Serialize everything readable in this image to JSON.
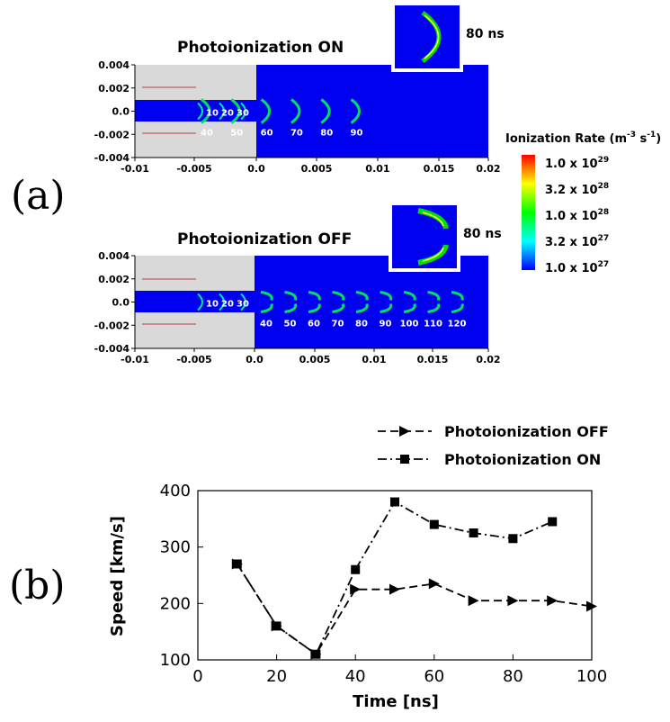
{
  "panel_a": {
    "label": "(a)",
    "sims": [
      {
        "title": "Photoionization ON",
        "inset_label": "80 ns",
        "yticks": [
          "0.004",
          "0.002",
          "0.0",
          "-0.002",
          "-0.004"
        ],
        "xticks": [
          "-0.01",
          "-0.005",
          "0.0",
          "0.005",
          "0.01",
          "0.015",
          "0.02"
        ],
        "time_labels_top": [
          "10",
          "20",
          "30"
        ],
        "time_labels_bottom": [
          "40",
          "50",
          "60",
          "70",
          "80",
          "90"
        ]
      },
      {
        "title": "Photoionization OFF",
        "inset_label": "80 ns",
        "yticks": [
          "0.004",
          "0.002",
          "0.0",
          "-0.002",
          "-0.004"
        ],
        "xticks": [
          "-0.01",
          "-0.005",
          "0.0",
          "0.005",
          "0.01",
          "0.015",
          "0.02"
        ],
        "time_labels_top": [
          "10",
          "20",
          "30"
        ],
        "time_labels_bottom": [
          "40",
          "50",
          "60",
          "70",
          "80",
          "90",
          "100",
          "110",
          "120"
        ]
      }
    ],
    "colorbar": {
      "title": "Ionization Rate (m",
      "title_sup1": "-3",
      "title_mid": " s",
      "title_sup2": "-1",
      "title_end": ")",
      "ticks": [
        {
          "mant": "1.0 x 10",
          "exp": "29"
        },
        {
          "mant": "3.2 x 10",
          "exp": "28"
        },
        {
          "mant": "1.0 x 10",
          "exp": "28"
        },
        {
          "mant": "3.2 x 10",
          "exp": "27"
        },
        {
          "mant": "1.0 x 10",
          "exp": "27"
        }
      ],
      "colors": [
        "#ff0000",
        "#ffff00",
        "#00ff00",
        "#00ffff",
        "#0000ff"
      ]
    }
  },
  "panel_b": {
    "label": "(b)"
  },
  "chart_data": {
    "type": "line",
    "xlabel": "Time [ns]",
    "ylabel": "Speed [km/s]",
    "xlim": [
      0,
      100
    ],
    "ylim": [
      100,
      400
    ],
    "xticks": [
      0,
      20,
      40,
      60,
      80,
      100
    ],
    "yticks": [
      100,
      200,
      300,
      400
    ],
    "legend_position": "top-right",
    "series": [
      {
        "name": "Photoionization OFF",
        "marker": "triangle-right",
        "line_style": "dashed",
        "x": [
          10,
          20,
          30,
          40,
          50,
          60,
          70,
          80,
          90,
          100
        ],
        "y": [
          270,
          160,
          110,
          225,
          225,
          235,
          205,
          205,
          205,
          195
        ]
      },
      {
        "name": "Photoionization ON",
        "marker": "square",
        "line_style": "dash-dot",
        "x": [
          10,
          20,
          30,
          40,
          50,
          60,
          70,
          80,
          90
        ],
        "y": [
          270,
          160,
          110,
          260,
          380,
          340,
          325,
          315,
          345
        ]
      }
    ]
  }
}
